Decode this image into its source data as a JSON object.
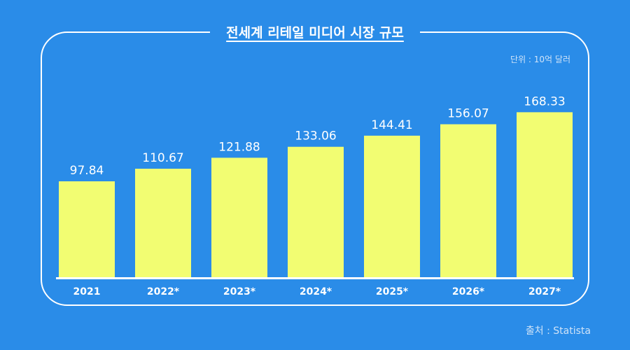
{
  "header": {
    "title": "전세계 리테일 미디어 시장 규모"
  },
  "unit_label": "단위 : 10억 달러",
  "source_label": "출처 : Statista",
  "colors": {
    "background": "#2a8ce8",
    "bar": "#f2fd72",
    "text": "#ffffff"
  },
  "chart_data": {
    "type": "bar",
    "title": "전세계 리테일 미디어 시장 규모",
    "categories": [
      "2021",
      "2022*",
      "2023*",
      "2024*",
      "2025*",
      "2026*",
      "2027*"
    ],
    "values": [
      97.84,
      110.67,
      121.88,
      133.06,
      144.41,
      156.07,
      168.33
    ],
    "value_labels": [
      "97.84",
      "110.67",
      "121.88",
      "133.06",
      "144.41",
      "156.07",
      "168.33"
    ],
    "xlabel": "",
    "ylabel": "",
    "ylim": [
      0,
      200
    ],
    "grid": false
  }
}
